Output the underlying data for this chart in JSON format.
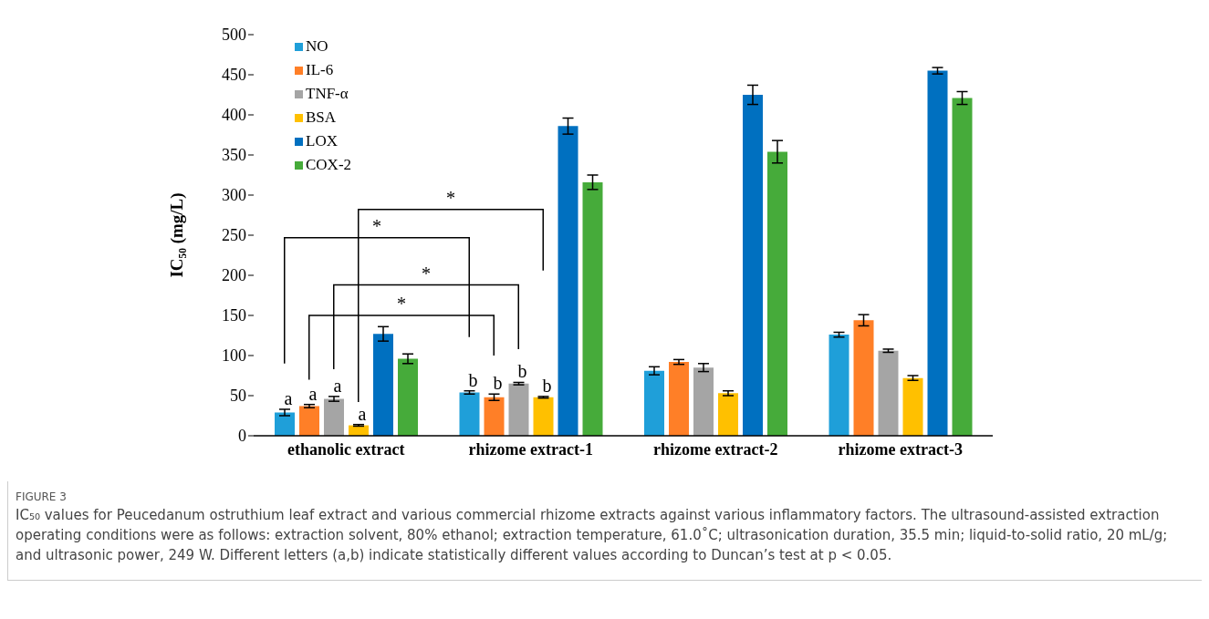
{
  "chart_data": {
    "type": "bar",
    "title": "FIGURE 3",
    "ylabel": "IC₅₀ (mg/L)",
    "categories": [
      "ethanolic extract",
      "rhizome extract-1",
      "rhizome extract-2",
      "rhizome extract-3"
    ],
    "series": [
      {
        "name": "NO",
        "color": "#1f9fd9",
        "values": [
          29,
          54,
          81,
          126
        ],
        "errors": [
          4,
          2,
          5,
          3
        ],
        "value_labels": [
          "a",
          "b",
          null,
          null
        ]
      },
      {
        "name": "IL-6",
        "color": "#ff7f27",
        "values": [
          37,
          48,
          92,
          144
        ],
        "errors": [
          2,
          4,
          3,
          7
        ],
        "value_labels": [
          "a",
          "b",
          null,
          null
        ]
      },
      {
        "name": "TNF-α",
        "color": "#a5a5a5",
        "values": [
          46,
          65,
          85,
          106
        ],
        "errors": [
          3,
          1.5,
          5,
          2
        ],
        "value_labels": [
          "a",
          "b",
          null,
          null
        ]
      },
      {
        "name": "BSA",
        "color": "#ffc000",
        "values": [
          13,
          48,
          53,
          72
        ],
        "errors": [
          1,
          1,
          3,
          3
        ],
        "value_labels": [
          "a",
          "b",
          null,
          null
        ]
      },
      {
        "name": "LOX",
        "color": "#0070c0",
        "values": [
          127,
          386,
          425,
          455
        ],
        "errors": [
          9,
          10,
          12,
          4
        ]
      },
      {
        "name": "COX-2",
        "color": "#46ab3a",
        "values": [
          96,
          316,
          354,
          421
        ],
        "errors": [
          6,
          9,
          14,
          8
        ]
      }
    ],
    "ylim": [
      0,
      500
    ],
    "yticks": [
      0,
      50,
      100,
      150,
      200,
      250,
      300,
      350,
      400,
      450,
      500
    ],
    "grid": false,
    "legend": "top left",
    "annotations": [
      "*",
      "*",
      "*",
      "*",
      "IC₅₀ values for Peucedanum ostruthium leaf extract and various commercial rhizome extracts against various inflammatory factors. The ultrasound-assisted extraction operating conditions were as follows: extraction solvent, 80% ethanol; extraction temperature, 61.0˚C; ultrasonication duration, 35.5 min; liquid-to-solid ratio, 20 mL/g; and ultrasonic power, 249 W. Different letters (a,b) indicate statistically different values according to Duncan’s test at p < 0.05."
    ]
  }
}
